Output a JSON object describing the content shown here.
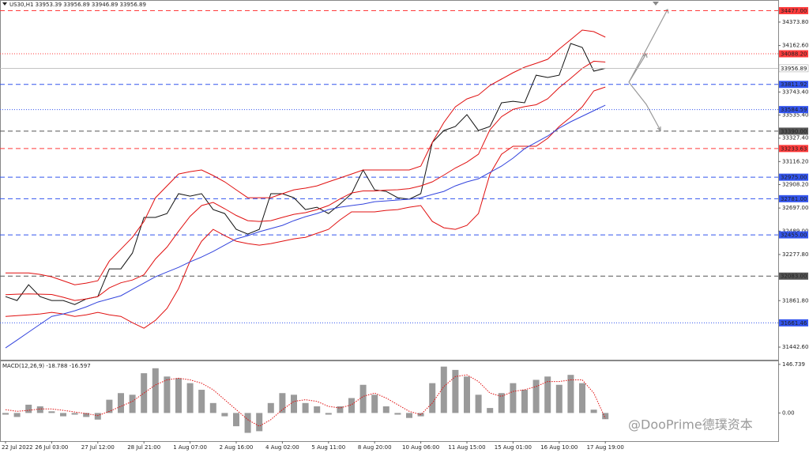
{
  "chart_data": [
    {
      "type": "line",
      "title": "US30,H1 33953.39 33956.89 33946.89 33956.89",
      "categories": [
        "22 Jul 2022",
        null,
        null,
        null,
        "26 Jul 03:00",
        null,
        null,
        null,
        "27 Jul 12:00",
        null,
        null,
        null,
        "28 Jul 21:00",
        null,
        null,
        null,
        "1 Aug 07:00",
        null,
        null,
        null,
        "2 Aug 16:00",
        null,
        null,
        null,
        "4 Aug 02:00",
        null,
        null,
        null,
        "5 Aug 11:00",
        null,
        null,
        null,
        "8 Aug 20:00",
        null,
        null,
        null,
        "10 Aug 06:00",
        null,
        null,
        null,
        "11 Aug 15:00",
        null,
        null,
        null,
        "15 Aug 01:00",
        null,
        null,
        null,
        "16 Aug 10:00",
        null,
        null,
        null,
        "17 Aug 19:00"
      ],
      "series": [
        {
          "color": "#111111",
          "values": [
            31898,
            31863,
            32005,
            31898,
            31863,
            31863,
            31827,
            31877,
            31898,
            32148,
            32148,
            32291,
            32612,
            32612,
            32647,
            32826,
            32804,
            32826,
            32683,
            32647,
            32505,
            32462,
            32505,
            32826,
            32826,
            32790,
            32683,
            32704,
            32647,
            32733,
            32826,
            33040,
            32861,
            32847,
            32790,
            32776,
            32826,
            33289,
            33396,
            33432,
            33539,
            33396,
            33432,
            33646,
            33660,
            33646,
            33895,
            33874,
            33895,
            34181,
            34145,
            33931,
            33956.89
          ]
        },
        {
          "color": "#e01010",
          "values": [
            32112,
            32112,
            32112,
            32098,
            32077,
            32041,
            32005,
            32020,
            32041,
            32219,
            32326,
            32433,
            32576,
            32790,
            32897,
            33004,
            33025,
            33040,
            32990,
            32933,
            32861,
            32790,
            32790,
            32790,
            32826,
            32861,
            32876,
            32897,
            32933,
            32968,
            33004,
            33040,
            33040,
            33040,
            33040,
            33040,
            33075,
            33289,
            33468,
            33610,
            33681,
            33717,
            33803,
            33860,
            33917,
            33967,
            34002,
            34038,
            34131,
            34216,
            34302,
            34288,
            34238
          ]
        },
        {
          "color": "#e01010",
          "values": [
            31916,
            31920,
            31923,
            31920,
            31917,
            31892,
            31863,
            31877,
            31899,
            31977,
            32023,
            32048,
            32095,
            32238,
            32345,
            32487,
            32622,
            32719,
            32748,
            32691,
            32630,
            32583,
            32576,
            32583,
            32612,
            32640,
            32655,
            32683,
            32719,
            32779,
            32833,
            32851,
            32851,
            32858,
            32862,
            32872,
            32897,
            32933,
            32994,
            33058,
            33111,
            33182,
            33404,
            33521,
            33586,
            33611,
            33628,
            33682,
            33782,
            33867,
            33956,
            34021,
            34013
          ]
        },
        {
          "color": "#e01010",
          "values": [
            31720,
            31727,
            31734,
            31742,
            31756,
            31742,
            31720,
            31734,
            31756,
            31734,
            31720,
            31663,
            31613,
            31685,
            31792,
            31970,
            32219,
            32398,
            32505,
            32448,
            32398,
            32376,
            32362,
            32376,
            32398,
            32419,
            32433,
            32469,
            32505,
            32590,
            32662,
            32662,
            32662,
            32676,
            32683,
            32704,
            32719,
            32576,
            32519,
            32505,
            32540,
            32647,
            33004,
            33182,
            33254,
            33254,
            33254,
            33325,
            33432,
            33517,
            33610,
            33753,
            33788
          ]
        },
        {
          "color": "#3344dd",
          "values": [
            31435,
            31506,
            31578,
            31649,
            31720,
            31742,
            31770,
            31806,
            31849,
            31877,
            31906,
            31963,
            32020,
            32077,
            32120,
            32162,
            32212,
            32255,
            32305,
            32362,
            32419,
            32448,
            32483,
            32512,
            32540,
            32583,
            32619,
            32647,
            32683,
            32704,
            32719,
            32733,
            32754,
            32761,
            32769,
            32776,
            32790,
            32819,
            32847,
            32897,
            32933,
            32961,
            33018,
            33075,
            33147,
            33232,
            33289,
            33346,
            33418,
            33475,
            33525,
            33575,
            33624
          ]
        }
      ],
      "ylim": [
        31329,
        34573
      ],
      "yticks": [
        {
          "value": 34373.8,
          "label": "34373.80"
        },
        {
          "value": 34162.6,
          "label": "34162.60"
        },
        {
          "value": 33743.4,
          "label": "33743.40"
        },
        {
          "value": 33535.4,
          "label": "33535.40"
        },
        {
          "value": 33327.4,
          "label": "33327.40"
        },
        {
          "value": 33116.2,
          "label": "33116.20"
        },
        {
          "value": 32908.2,
          "label": "32908.20"
        },
        {
          "value": 32697,
          "label": "32697.00"
        },
        {
          "value": 32489,
          "label": "32489.00"
        },
        {
          "value": 32277.8,
          "label": "32277.80"
        },
        {
          "value": 31861.8,
          "label": "31861.80"
        },
        {
          "value": 31442.6,
          "label": "31442.60"
        }
      ],
      "levels": [
        {
          "value": 34477,
          "label": "34477.00",
          "color": "#ff3b3b",
          "style": "dashed"
        },
        {
          "value": 34088.2,
          "label": "34088.20",
          "color": "#ff3b3b",
          "style": "dotted"
        },
        {
          "value": 33811.92,
          "label": "33811.92",
          "color": "#3355ee",
          "style": "dashed"
        },
        {
          "value": 33584.59,
          "label": "33584.59",
          "color": "#3355ee",
          "style": "dotted"
        },
        {
          "value": 33390,
          "label": "33390.00",
          "color": "#555555",
          "style": "dashed"
        },
        {
          "value": 33233.63,
          "label": "33233.63",
          "color": "#ff3b3b",
          "style": "dashed"
        },
        {
          "value": 32975,
          "label": "32975.00",
          "color": "#3355ee",
          "style": "dashed"
        },
        {
          "value": 32781,
          "label": "32781.00",
          "color": "#3355ee",
          "style": "dashed"
        },
        {
          "value": 32455,
          "label": "32455.00",
          "color": "#3355ee",
          "style": "dashed"
        },
        {
          "value": 32083,
          "label": "32083.00",
          "color": "#555555",
          "style": "dashed"
        },
        {
          "value": 31661.46,
          "label": "31661.46",
          "color": "#3355ee",
          "style": "dotted"
        }
      ]
    },
    {
      "type": "bar",
      "title": "MACD(12,26,9) -18.788 -16.597",
      "series": [
        {
          "type": "bar",
          "color": "#9a9a9a",
          "values": [
            -5,
            -12,
            25,
            20,
            5,
            -10,
            -5,
            -12,
            -20,
            40,
            60,
            55,
            120,
            135,
            110,
            105,
            90,
            70,
            30,
            -10,
            -40,
            -60,
            -55,
            30,
            60,
            55,
            30,
            20,
            -5,
            20,
            45,
            85,
            55,
            20,
            -5,
            -15,
            -10,
            90,
            140,
            130,
            110,
            55,
            15,
            60,
            90,
            70,
            100,
            110,
            85,
            115,
            90,
            10,
            -18.788
          ]
        },
        {
          "type": "line",
          "style": "dotted",
          "color": "#e01010",
          "values": [
            10,
            5,
            8,
            12,
            12,
            8,
            3,
            -2,
            -8,
            5,
            20,
            35,
            60,
            85,
            100,
            105,
            100,
            90,
            70,
            40,
            10,
            -20,
            -40,
            -20,
            10,
            35,
            40,
            35,
            20,
            15,
            25,
            50,
            60,
            45,
            25,
            5,
            -5,
            30,
            80,
            110,
            115,
            95,
            60,
            50,
            65,
            70,
            80,
            95,
            95,
            100,
            100,
            60,
            -16.597
          ]
        }
      ],
      "ylim": [
        -85,
        156
      ],
      "yticks": [
        146.739,
        {
          "value": 0,
          "label": "0.00"
        }
      ]
    },
    {
      "watermark": "@DooPrime德璞资本"
    }
  ]
}
